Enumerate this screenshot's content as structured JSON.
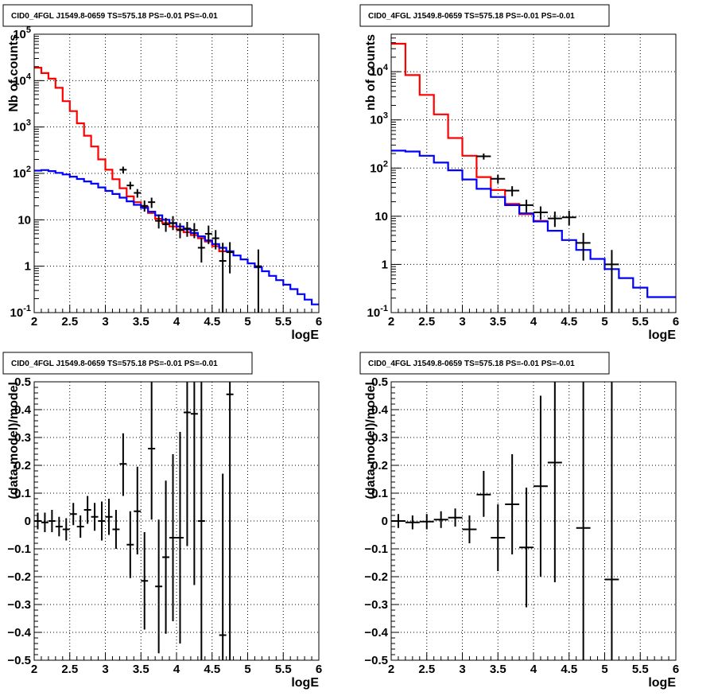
{
  "chart_data": [
    {
      "id": "spec1",
      "type": "line",
      "title": "CID0_4FGL J1549.8-0659 TS=575.18 PS=-0.01 PS=-0.01",
      "xlabel": "logE",
      "ylabel": "Nb of counts",
      "xlim": [
        2,
        6
      ],
      "ylim": [
        0.1,
        100000
      ],
      "yscale": "log",
      "grid": true,
      "xticks": [
        "2",
        "2.5",
        "3",
        "3.5",
        "4",
        "4.5",
        "5",
        "5.5",
        "6"
      ],
      "yticks": [
        {
          "v": 0.1,
          "base": "10",
          "exp": "-1"
        },
        {
          "v": 1,
          "label": "1"
        },
        {
          "v": 10,
          "label": "10"
        },
        {
          "v": 100,
          "base": "10",
          "exp": "2"
        },
        {
          "v": 1000,
          "base": "10",
          "exp": "3"
        },
        {
          "v": 10000,
          "base": "10",
          "exp": "4"
        },
        {
          "v": 100000,
          "base": "10",
          "exp": "5"
        }
      ],
      "series": [
        {
          "kind": "step",
          "color": "#ff0000",
          "edges_start": 2.0,
          "edges_step": 0.1,
          "values": [
            19000,
            14500,
            11000,
            7000,
            3600,
            2200,
            1200,
            650,
            380,
            200,
            120,
            75,
            48,
            32,
            24,
            19,
            14,
            10.5,
            8.5,
            7.2,
            6.2,
            5.4,
            4.7,
            4.0,
            3.4,
            2.7,
            2.1
          ]
        },
        {
          "kind": "step",
          "color": "#0000ff",
          "edges_start": 2.0,
          "edges_step": 0.1,
          "values": [
            115,
            118,
            112,
            103,
            95,
            85,
            76,
            67,
            60,
            50,
            42,
            36,
            30,
            25,
            21,
            18,
            15,
            12.5,
            10,
            8.5,
            7.2,
            6.2,
            5.2,
            4.4,
            3.6,
            3.0,
            2.5,
            2.1,
            1.7,
            1.4,
            1.15,
            0.95,
            0.78,
            0.62,
            0.5,
            0.4,
            0.32,
            0.25,
            0.19,
            0.15
          ]
        },
        {
          "kind": "points",
          "color": "#000000",
          "halfwidth": 0.05,
          "points": [
            [
              3.25,
              120,
              100,
              140
            ],
            [
              3.35,
              55,
              45,
              66
            ],
            [
              3.45,
              38,
              30,
              46
            ],
            [
              3.55,
              20,
              15,
              26
            ],
            [
              3.65,
              24,
              18,
              30
            ],
            [
              3.75,
              9.5,
              6.5,
              13
            ],
            [
              3.85,
              8,
              5.5,
              11
            ],
            [
              3.95,
              8.5,
              6,
              12
            ],
            [
              4.05,
              6,
              4,
              8.5
            ],
            [
              4.15,
              6.5,
              4.3,
              9
            ],
            [
              4.25,
              6,
              4,
              8.5
            ],
            [
              4.35,
              2.5,
              1.2,
              4
            ],
            [
              4.45,
              5,
              3,
              7.5
            ],
            [
              4.55,
              4,
              2.3,
              6
            ],
            [
              4.65,
              1.3,
              0.1,
              3.2
            ],
            [
              4.75,
              2,
              0.7,
              3.3
            ],
            [
              5.15,
              1,
              0.1,
              2.3
            ]
          ]
        }
      ]
    },
    {
      "id": "spec2",
      "type": "line",
      "title": "CID0_4FGL J1549.8-0659 TS=575.18 PS=-0.01 PS=-0.01",
      "xlabel": "logE",
      "ylabel": "nb of counts",
      "xlim": [
        2,
        6
      ],
      "ylim": [
        0.1,
        60000
      ],
      "yscale": "log",
      "grid": true,
      "xticks": [
        "2",
        "2.5",
        "3",
        "3.5",
        "4",
        "4.5",
        "5",
        "5.5",
        "6"
      ],
      "yticks": [
        {
          "v": 0.1,
          "base": "10",
          "exp": "-1"
        },
        {
          "v": 1,
          "label": "1"
        },
        {
          "v": 10,
          "label": "10"
        },
        {
          "v": 100,
          "base": "10",
          "exp": "2"
        },
        {
          "v": 1000,
          "base": "10",
          "exp": "3"
        },
        {
          "v": 10000,
          "base": "10",
          "exp": "4"
        }
      ],
      "series": [
        {
          "kind": "step",
          "color": "#ff0000",
          "edges_start": 2.0,
          "edges_step": 0.2,
          "values": [
            38000,
            8500,
            3300,
            1300,
            420,
            180,
            65,
            35,
            18,
            11,
            8
          ]
        },
        {
          "kind": "step",
          "color": "#0000ff",
          "edges_start": 2.0,
          "edges_step": 0.2,
          "values": [
            230,
            220,
            180,
            130,
            90,
            58,
            37,
            25,
            17,
            11.5,
            7.8,
            5,
            3.2,
            2,
            1.3,
            0.8,
            0.52,
            0.33,
            0.21,
            0.21
          ]
        },
        {
          "kind": "points",
          "color": "#000000",
          "halfwidth": 0.1,
          "points": [
            [
              3.3,
              175,
              150,
              200
            ],
            [
              3.5,
              60,
              48,
              72
            ],
            [
              3.7,
              34,
              26,
              42
            ],
            [
              3.9,
              17,
              12,
              22
            ],
            [
              4.1,
              12,
              8.5,
              16
            ],
            [
              4.3,
              9,
              6,
              12.5
            ],
            [
              4.5,
              9.5,
              6.5,
              13
            ],
            [
              4.7,
              2.8,
              1.2,
              4.5
            ],
            [
              5.1,
              1,
              0.1,
              2
            ]
          ]
        }
      ]
    },
    {
      "id": "res1",
      "type": "scatter",
      "title": "CID0_4FGL J1549.8-0659 TS=575.18 PS=-0.01 PS=-0.01",
      "xlabel": "logE",
      "ylabel": "(data-model)/model",
      "xlim": [
        2,
        6
      ],
      "ylim": [
        -0.5,
        0.5
      ],
      "yscale": "linear",
      "grid": true,
      "xticks": [
        "2",
        "2.5",
        "3",
        "3.5",
        "4",
        "4.5",
        "5",
        "5.5",
        "6"
      ],
      "yticks": [
        {
          "v": -0.5,
          "label": "−0.5"
        },
        {
          "v": -0.4,
          "label": "−0.4"
        },
        {
          "v": -0.3,
          "label": "−0.3"
        },
        {
          "v": -0.2,
          "label": "−0.2"
        },
        {
          "v": -0.1,
          "label": "−0.1"
        },
        {
          "v": 0,
          "label": "0"
        },
        {
          "v": 0.1,
          "label": "0.1"
        },
        {
          "v": 0.2,
          "label": "0.2"
        },
        {
          "v": 0.3,
          "label": "0.3"
        },
        {
          "v": 0.4,
          "label": "0.4"
        },
        {
          "v": 0.5,
          "label": "0.5"
        }
      ],
      "series": [
        {
          "kind": "points",
          "color": "#000000",
          "halfwidth": 0.05,
          "points": [
            [
              2.05,
              0.0,
              -0.03,
              0.03
            ],
            [
              2.15,
              -0.005,
              -0.04,
              0.03
            ],
            [
              2.25,
              0.0,
              -0.04,
              0.04
            ],
            [
              2.35,
              -0.02,
              -0.055,
              0.015
            ],
            [
              2.45,
              -0.03,
              -0.07,
              0.01
            ],
            [
              2.55,
              0.025,
              -0.015,
              0.065
            ],
            [
              2.65,
              -0.02,
              -0.06,
              0.02
            ],
            [
              2.75,
              0.04,
              -0.01,
              0.09
            ],
            [
              2.85,
              0.015,
              -0.035,
              0.065
            ],
            [
              2.95,
              0.0,
              -0.07,
              0.07
            ],
            [
              3.05,
              0.015,
              -0.05,
              0.08
            ],
            [
              3.15,
              -0.03,
              -0.1,
              0.04
            ],
            [
              3.25,
              0.205,
              0.09,
              0.315
            ],
            [
              3.35,
              -0.085,
              -0.205,
              0.035
            ],
            [
              3.45,
              0.035,
              -0.12,
              0.195
            ],
            [
              3.55,
              -0.215,
              -0.39,
              -0.04
            ],
            [
              3.65,
              0.26,
              0.005,
              0.5
            ],
            [
              3.75,
              -0.235,
              -0.475,
              0.005
            ],
            [
              3.85,
              -0.13,
              -0.405,
              0.145
            ],
            [
              3.95,
              -0.06,
              -0.36,
              0.24
            ],
            [
              4.05,
              -0.06,
              -0.44,
              0.32
            ],
            [
              4.15,
              0.39,
              -0.09,
              0.5
            ],
            [
              4.25,
              0.385,
              -0.23,
              0.5
            ],
            [
              4.35,
              0.0,
              -0.5,
              0.5
            ],
            [
              4.65,
              -0.41,
              -0.5,
              0.17
            ],
            [
              4.75,
              0.455,
              -0.5,
              0.5
            ]
          ]
        }
      ]
    },
    {
      "id": "res2",
      "type": "scatter",
      "title": "CID0_4FGL J1549.8-0659 TS=575.18 PS=-0.01 PS=-0.01",
      "xlabel": "logE",
      "ylabel": "(data-model)/model",
      "xlim": [
        2,
        6
      ],
      "ylim": [
        -0.5,
        0.5
      ],
      "yscale": "linear",
      "grid": true,
      "xticks": [
        "2",
        "2.5",
        "3",
        "3.5",
        "4",
        "4.5",
        "5",
        "5.5",
        "6"
      ],
      "yticks": [
        {
          "v": -0.5,
          "label": "−0.5"
        },
        {
          "v": -0.4,
          "label": "−0.4"
        },
        {
          "v": -0.3,
          "label": "−0.3"
        },
        {
          "v": -0.2,
          "label": "−0.2"
        },
        {
          "v": -0.1,
          "label": "−0.1"
        },
        {
          "v": 0,
          "label": "0"
        },
        {
          "v": 0.1,
          "label": "0.1"
        },
        {
          "v": 0.2,
          "label": "0.2"
        },
        {
          "v": 0.3,
          "label": "0.3"
        },
        {
          "v": 0.4,
          "label": "0.4"
        },
        {
          "v": 0.5,
          "label": "0.5"
        }
      ],
      "series": [
        {
          "kind": "points",
          "color": "#000000",
          "halfwidth": 0.1,
          "points": [
            [
              2.1,
              0.0,
              -0.025,
              0.025
            ],
            [
              2.3,
              -0.005,
              -0.03,
              0.02
            ],
            [
              2.5,
              -0.002,
              -0.03,
              0.025
            ],
            [
              2.7,
              0.005,
              -0.025,
              0.035
            ],
            [
              2.9,
              0.012,
              -0.02,
              0.045
            ],
            [
              3.1,
              -0.03,
              -0.08,
              0.02
            ],
            [
              3.3,
              0.095,
              0.015,
              0.18
            ],
            [
              3.5,
              -0.06,
              -0.18,
              0.06
            ],
            [
              3.7,
              0.06,
              -0.12,
              0.24
            ],
            [
              3.9,
              -0.095,
              -0.31,
              0.12
            ],
            [
              4.1,
              0.125,
              -0.2,
              0.45
            ],
            [
              4.3,
              0.21,
              -0.22,
              0.5
            ],
            [
              4.7,
              -0.025,
              -0.5,
              0.5
            ],
            [
              5.1,
              -0.21,
              -0.5,
              0.5
            ]
          ]
        }
      ]
    }
  ]
}
